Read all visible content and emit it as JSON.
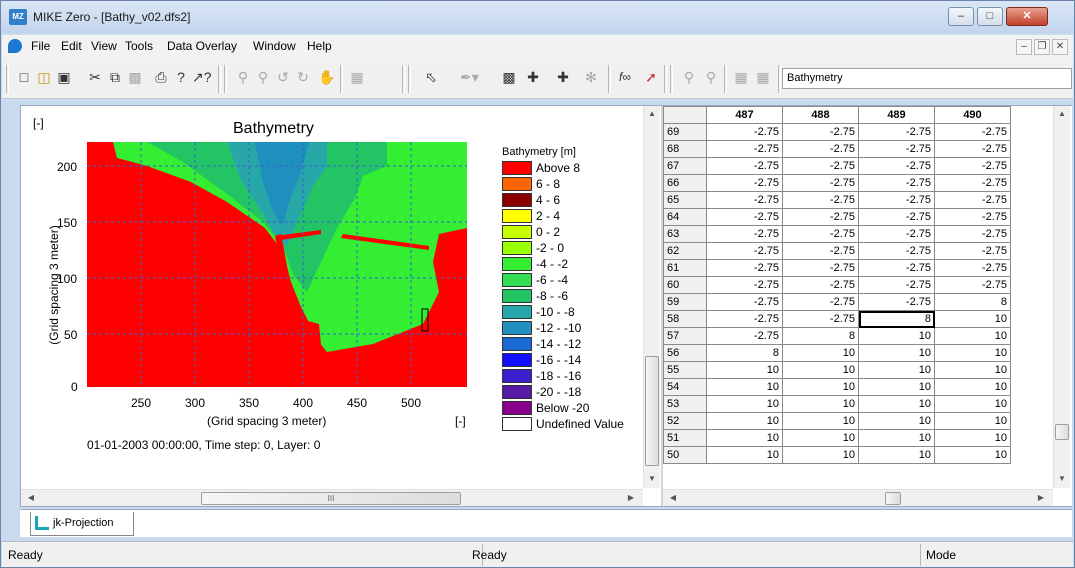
{
  "window": {
    "title": "MIKE Zero - [Bathy_v02.dfs2]",
    "app_icon_text": "MZ"
  },
  "menu": {
    "items": [
      "File",
      "Edit",
      "View",
      "Tools",
      "Data Overlay",
      "Window",
      "Help"
    ]
  },
  "toolbar": {
    "icons": [
      "new-icon",
      "open-icon",
      "save-icon",
      "cut-icon",
      "copy-icon",
      "paste-icon",
      "print-icon",
      "help-icon",
      "context-help-icon",
      "zoom-in-icon",
      "zoom-out-icon",
      "prev-view-icon",
      "next-view-icon",
      "pan-icon",
      "grid-icon",
      "pointer-icon",
      "draw-icon",
      "select-box-icon",
      "add-point-icon",
      "remove-point-icon",
      "smooth-icon",
      "formula-icon",
      "line-icon",
      "import-icon",
      "export-icon",
      "overlay-add-icon",
      "overlay-edit-icon"
    ],
    "item_combo": "Bathymetry"
  },
  "plot": {
    "title": "Bathymetry",
    "unit_left": "[-]",
    "unit_right": "[-]",
    "ylabel": "(Grid spacing 3 meter)",
    "xlabel": "(Grid spacing 3 meter)",
    "yticks": [
      "200",
      "150",
      "100",
      "50",
      "0"
    ],
    "xticks": [
      "250",
      "300",
      "350",
      "400",
      "450",
      "500"
    ],
    "timestep_text": "01-01-2003 00:00:00, Time step: 0, Layer: 0",
    "colors": {
      "land": "#ff0000",
      "shallow": "#33ee33",
      "mid": "#22c464",
      "deep": "#27a7a8",
      "deepest": "#1f8fbe"
    }
  },
  "legend": {
    "title": "Bathymetry [m]",
    "entries": [
      {
        "label": "Above   8",
        "color": "#ff0000"
      },
      {
        "label": "6 -   8",
        "color": "#ff6600"
      },
      {
        "label": "4 -   6",
        "color": "#8b0000"
      },
      {
        "label": "2 -   4",
        "color": "#ffff00"
      },
      {
        "label": "0 -   2",
        "color": "#c6ff00"
      },
      {
        "label": "-2 -   0",
        "color": "#99ff00"
      },
      {
        "label": "-4 -  -2",
        "color": "#33ee33"
      },
      {
        "label": "-6 -  -4",
        "color": "#33dd55"
      },
      {
        "label": "-8 -  -6",
        "color": "#22c464"
      },
      {
        "label": "-10 -  -8",
        "color": "#27a7a8"
      },
      {
        "label": "-12 - -10",
        "color": "#1f8fbe"
      },
      {
        "label": "-14 - -12",
        "color": "#1a6ad4"
      },
      {
        "label": "-16 - -14",
        "color": "#1010ff"
      },
      {
        "label": "-18 - -16",
        "color": "#3b1fd0"
      },
      {
        "label": "-20 - -18",
        "color": "#5a1aa8"
      },
      {
        "label": "Below -20",
        "color": "#8b008b"
      },
      {
        "label": "Undefined Value",
        "color": "#ffffff"
      }
    ]
  },
  "table": {
    "columns": [
      "487",
      "488",
      "489",
      "490"
    ],
    "rows": [
      {
        "row": "69",
        "v": [
          "-2.75",
          "-2.75",
          "-2.75",
          "-2.75"
        ]
      },
      {
        "row": "68",
        "v": [
          "-2.75",
          "-2.75",
          "-2.75",
          "-2.75"
        ]
      },
      {
        "row": "67",
        "v": [
          "-2.75",
          "-2.75",
          "-2.75",
          "-2.75"
        ]
      },
      {
        "row": "66",
        "v": [
          "-2.75",
          "-2.75",
          "-2.75",
          "-2.75"
        ]
      },
      {
        "row": "65",
        "v": [
          "-2.75",
          "-2.75",
          "-2.75",
          "-2.75"
        ]
      },
      {
        "row": "64",
        "v": [
          "-2.75",
          "-2.75",
          "-2.75",
          "-2.75"
        ]
      },
      {
        "row": "63",
        "v": [
          "-2.75",
          "-2.75",
          "-2.75",
          "-2.75"
        ]
      },
      {
        "row": "62",
        "v": [
          "-2.75",
          "-2.75",
          "-2.75",
          "-2.75"
        ]
      },
      {
        "row": "61",
        "v": [
          "-2.75",
          "-2.75",
          "-2.75",
          "-2.75"
        ]
      },
      {
        "row": "60",
        "v": [
          "-2.75",
          "-2.75",
          "-2.75",
          "-2.75"
        ]
      },
      {
        "row": "59",
        "v": [
          "-2.75",
          "-2.75",
          "-2.75",
          "8"
        ]
      },
      {
        "row": "58",
        "v": [
          "-2.75",
          "-2.75",
          "8",
          "10"
        ]
      },
      {
        "row": "57",
        "v": [
          "-2.75",
          "8",
          "10",
          "10"
        ]
      },
      {
        "row": "56",
        "v": [
          "8",
          "10",
          "10",
          "10"
        ]
      },
      {
        "row": "55",
        "v": [
          "10",
          "10",
          "10",
          "10"
        ]
      },
      {
        "row": "54",
        "v": [
          "10",
          "10",
          "10",
          "10"
        ]
      },
      {
        "row": "53",
        "v": [
          "10",
          "10",
          "10",
          "10"
        ]
      },
      {
        "row": "52",
        "v": [
          "10",
          "10",
          "10",
          "10"
        ]
      },
      {
        "row": "51",
        "v": [
          "10",
          "10",
          "10",
          "10"
        ]
      },
      {
        "row": "50",
        "v": [
          "10",
          "10",
          "10",
          "10"
        ]
      }
    ],
    "selected": {
      "row": 11,
      "col": 2
    }
  },
  "scrollbar": {
    "hscroll_label": "III"
  },
  "tabs": [
    {
      "label": "jk-Projection"
    }
  ],
  "status": {
    "left": "Ready",
    "center": "Ready",
    "right": "Mode"
  }
}
